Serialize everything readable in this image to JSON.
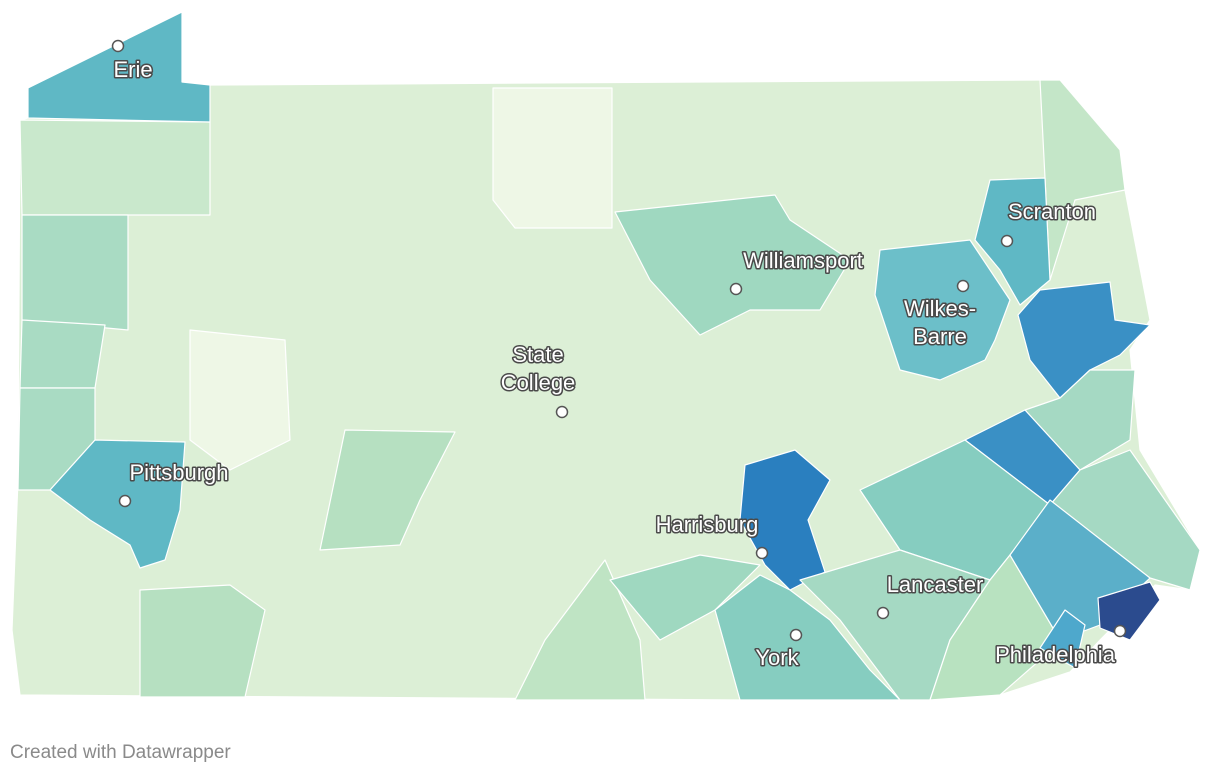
{
  "map": {
    "cities": [
      {
        "label_lines": [
          "Erie"
        ]
      },
      {
        "label_lines": [
          "Scranton"
        ]
      },
      {
        "label_lines": [
          "Williamsport"
        ]
      },
      {
        "label_lines": [
          "Wilkes-",
          "Barre"
        ]
      },
      {
        "label_lines": [
          "State",
          "College"
        ]
      },
      {
        "label_lines": [
          "Pittsburgh"
        ]
      },
      {
        "label_lines": [
          "Harrisburg"
        ]
      },
      {
        "label_lines": [
          "Lancaster"
        ]
      },
      {
        "label_lines": [
          "York"
        ]
      },
      {
        "label_lines": [
          "Philadelphia"
        ]
      }
    ]
  },
  "footer": {
    "credit": "Created with Datawrapper"
  }
}
